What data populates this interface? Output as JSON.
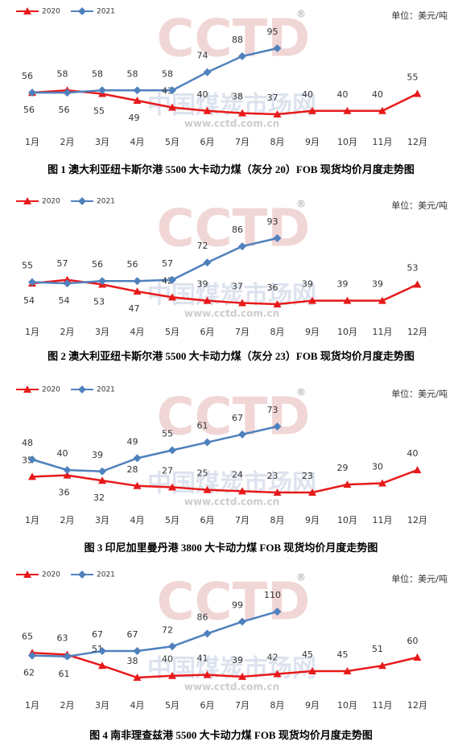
{
  "watermark": {
    "logo": "CCTD",
    "mark": "®",
    "name": "中国煤炭市场网",
    "url": "www.cctd.com.cn"
  },
  "chart_data": [
    {
      "type": "line",
      "title": "图 1  澳大利亚纽卡斯尔港 5500 大卡动力煤（灰分 20）FOB 现货均价月度走势图",
      "unit": "单位：美元/吨",
      "categories": [
        "1月",
        "2月",
        "3月",
        "4月",
        "5月",
        "6月",
        "7月",
        "8月",
        "9月",
        "10月",
        "11月",
        "12月"
      ],
      "series": [
        {
          "name": "2020",
          "color": "#e8191a",
          "values": [
            56,
            58,
            55,
            49,
            43,
            40,
            38,
            37,
            40,
            40,
            40,
            55
          ]
        },
        {
          "name": "2021",
          "color": "#4f81bd",
          "values": [
            56,
            56,
            58,
            58,
            58,
            74,
            88,
            95,
            null,
            null,
            null,
            null
          ]
        }
      ]
    },
    {
      "type": "line",
      "title": "图 2 澳大利亚纽卡斯尔港 5500 大卡动力煤（灰分 23）FOB 现货均价月度走势图",
      "unit": "单位：美元/吨",
      "categories": [
        "1月",
        "2月",
        "3月",
        "4月",
        "5月",
        "6月",
        "7月",
        "8月",
        "9月",
        "10月",
        "11月",
        "12月"
      ],
      "series": [
        {
          "name": "2020",
          "color": "#e8191a",
          "values": [
            54,
            57,
            53,
            47,
            42,
            39,
            37,
            36,
            39,
            39,
            39,
            53
          ]
        },
        {
          "name": "2021",
          "color": "#4f81bd",
          "values": [
            55,
            54,
            56,
            56,
            57,
            72,
            86,
            93,
            null,
            null,
            null,
            null
          ]
        }
      ]
    },
    {
      "type": "line",
      "title": "图 3  印尼加里曼丹港 3800 大卡动力煤 FOB 现货均价月度走势图",
      "unit": "单位：美元/吨",
      "categories": [
        "1月",
        "2月",
        "3月",
        "4月",
        "5月",
        "6月",
        "7月",
        "8月",
        "9月",
        "10月",
        "11月",
        "12月"
      ],
      "series": [
        {
          "name": "2020",
          "color": "#e8191a",
          "values": [
            35,
            36,
            32,
            28,
            27,
            25,
            24,
            23,
            23,
            29,
            30,
            40
          ]
        },
        {
          "name": "2021",
          "color": "#4f81bd",
          "values": [
            48,
            40,
            39,
            49,
            55,
            61,
            67,
            73,
            null,
            null,
            null,
            null
          ]
        }
      ]
    },
    {
      "type": "line",
      "title": "图 4  南非理查兹港 5500 大卡动力煤 FOB 现货均价月度走势图",
      "unit": "单位：美元/吨",
      "categories": [
        "1月",
        "2月",
        "3月",
        "4月",
        "5月",
        "6月",
        "7月",
        "8月",
        "9月",
        "10月",
        "11月",
        "12月"
      ],
      "series": [
        {
          "name": "2020",
          "color": "#e8191a",
          "values": [
            65,
            63,
            51,
            38,
            40,
            41,
            39,
            42,
            45,
            45,
            51,
            60
          ]
        },
        {
          "name": "2021",
          "color": "#4f81bd",
          "values": [
            62,
            61,
            67,
            67,
            72,
            86,
            99,
            110,
            null,
            null,
            null,
            null
          ]
        }
      ]
    }
  ]
}
